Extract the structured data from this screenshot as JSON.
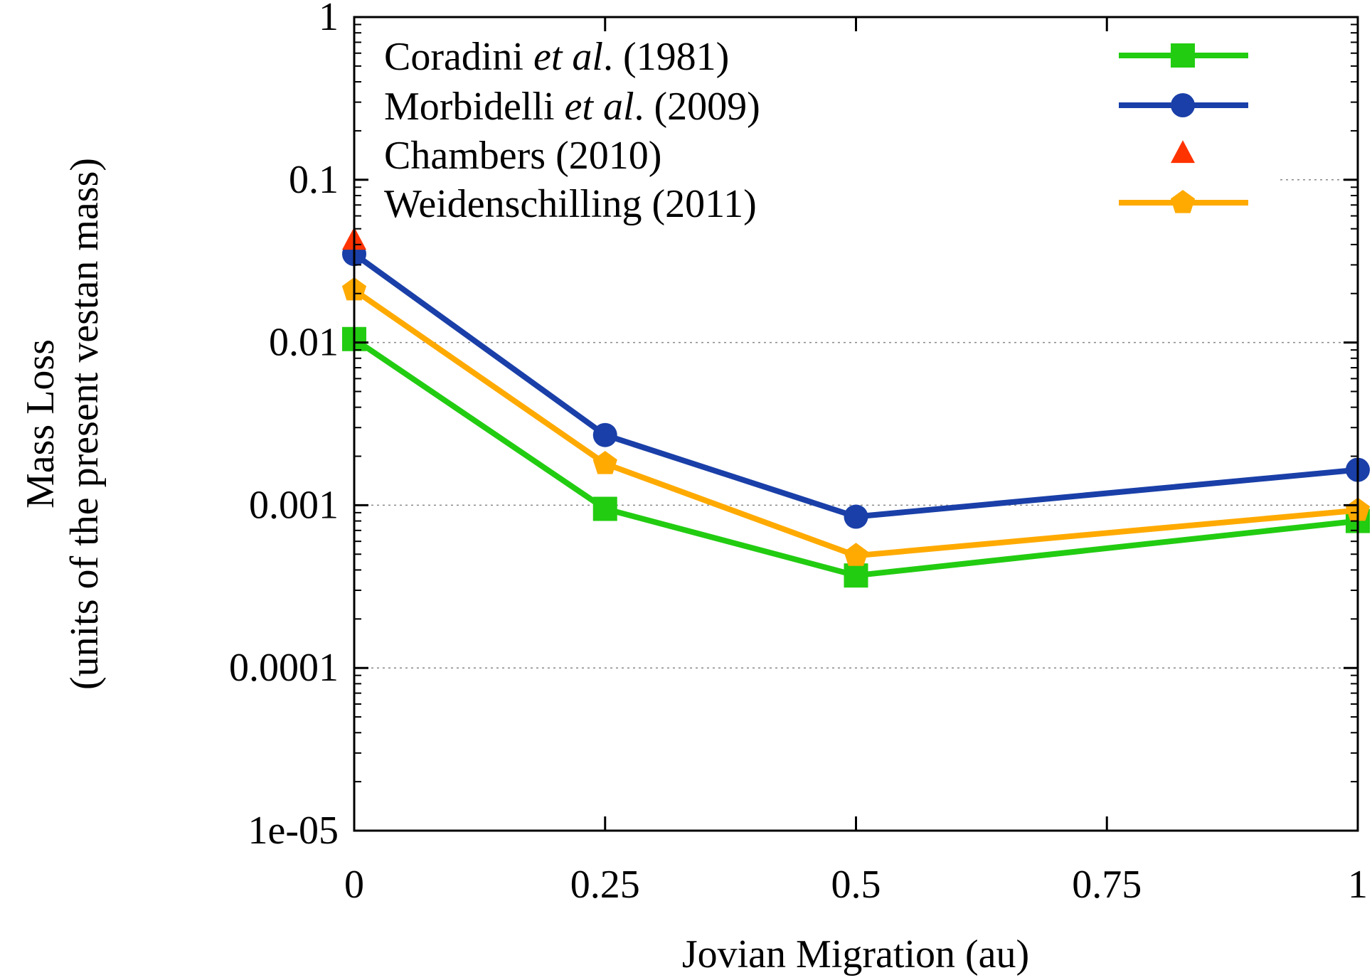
{
  "chart_data": {
    "type": "line",
    "xlabel": "Jovian Migration (au)",
    "ylabel": [
      "Mass Loss",
      "(units of the present vestan mass)"
    ],
    "xlim": [
      0,
      1
    ],
    "ylim": [
      1e-05,
      1
    ],
    "yscale": "log",
    "grid": "horizontal dotted",
    "legend_position": "top",
    "x_ticks": [
      {
        "value": 0,
        "label": "0"
      },
      {
        "value": 0.25,
        "label": "0.25"
      },
      {
        "value": 0.5,
        "label": "0.5"
      },
      {
        "value": 0.75,
        "label": "0.75"
      },
      {
        "value": 1,
        "label": "1"
      }
    ],
    "y_ticks": [
      {
        "value": 1,
        "label": "1"
      },
      {
        "value": 0.1,
        "label": "0.1"
      },
      {
        "value": 0.01,
        "label": "0.01"
      },
      {
        "value": 0.001,
        "label": "0.001"
      },
      {
        "value": 0.0001,
        "label": "0.0001"
      },
      {
        "value": 1e-05,
        "label": "1e-05"
      }
    ],
    "series": [
      {
        "id": "coradini",
        "name_parts": [
          {
            "text": "Coradini "
          },
          {
            "text": "et al",
            "italic": true
          },
          {
            "text": ". (1981)"
          }
        ],
        "color": "#22cc11",
        "marker": "square",
        "line": true,
        "points": [
          [
            0,
            0.0105
          ],
          [
            0.25,
            0.00095
          ],
          [
            0.5,
            0.00037
          ],
          [
            1,
            0.0008
          ]
        ]
      },
      {
        "id": "morbidelli",
        "name_parts": [
          {
            "text": "Morbidelli "
          },
          {
            "text": "et al",
            "italic": true
          },
          {
            "text": ". (2009)"
          }
        ],
        "color": "#1a3fa8",
        "marker": "circle",
        "line": true,
        "points": [
          [
            0,
            0.035
          ],
          [
            0.25,
            0.0027
          ],
          [
            0.5,
            0.00085
          ],
          [
            1,
            0.00165
          ]
        ]
      },
      {
        "id": "chambers",
        "name_parts": [
          {
            "text": "Chambers (2010)"
          }
        ],
        "color": "#ff3300",
        "marker": "triangle",
        "line": false,
        "points": [
          [
            0,
            0.042
          ]
        ]
      },
      {
        "id": "weidenschilling",
        "name_parts": [
          {
            "text": "Weidenschilling (2011)"
          }
        ],
        "color": "#ffaa00",
        "marker": "pentagon",
        "line": true,
        "points": [
          [
            0,
            0.021
          ],
          [
            0.25,
            0.0018
          ],
          [
            0.5,
            0.00049
          ],
          [
            1,
            0.00093
          ]
        ]
      }
    ]
  }
}
